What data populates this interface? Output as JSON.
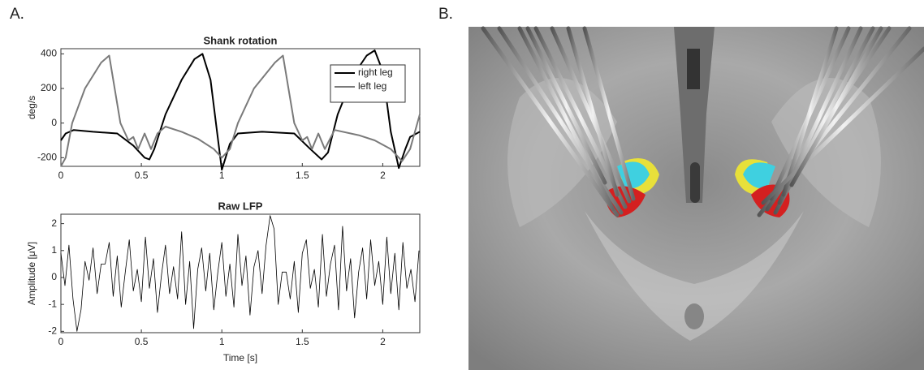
{
  "panel_labels": [
    "A.",
    "B."
  ],
  "chart_data": [
    {
      "type": "line",
      "title": "Shank rotation",
      "y_label": "deg/s",
      "xlim": [
        0,
        2.23
      ],
      "ylim": [
        -250,
        430
      ],
      "xticks": [
        0,
        0.5,
        1,
        1.5,
        2
      ],
      "yticks": [
        -200,
        0,
        200,
        400
      ],
      "legend": "upper right",
      "series": [
        {
          "name": "right leg",
          "color": "#000000",
          "x": [
            0,
            0.03,
            0.08,
            0.2,
            0.35,
            0.45,
            0.52,
            0.55,
            0.58,
            0.65,
            0.75,
            0.83,
            0.88,
            0.93,
            0.97,
            1.0,
            1.05,
            1.1,
            1.25,
            1.45,
            1.55,
            1.62,
            1.66,
            1.72,
            1.82,
            1.9,
            1.95,
            2.0,
            2.05,
            2.1,
            2.14,
            2.17,
            2.23
          ],
          "values": [
            -100,
            -60,
            -40,
            -50,
            -60,
            -130,
            -200,
            -210,
            -150,
            50,
            250,
            370,
            400,
            250,
            -50,
            -270,
            -120,
            -60,
            -50,
            -60,
            -150,
            -210,
            -170,
            50,
            280,
            390,
            420,
            300,
            -50,
            -260,
            -150,
            -80,
            -50
          ]
        },
        {
          "name": "left leg",
          "color": "#7a7a7a",
          "x": [
            0,
            0.03,
            0.07,
            0.15,
            0.25,
            0.3,
            0.37,
            0.42,
            0.45,
            0.48,
            0.52,
            0.56,
            0.6,
            0.65,
            0.75,
            0.85,
            0.95,
            1.0,
            1.05,
            1.1,
            1.2,
            1.33,
            1.38,
            1.45,
            1.5,
            1.53,
            1.56,
            1.6,
            1.64,
            1.7,
            1.85,
            1.95,
            2.05,
            2.12,
            2.17,
            2.23
          ],
          "values": [
            -250,
            -200,
            0,
            200,
            350,
            390,
            0,
            -100,
            -80,
            -150,
            -60,
            -150,
            -60,
            -20,
            -50,
            -90,
            -150,
            -200,
            -150,
            0,
            200,
            350,
            390,
            0,
            -100,
            -80,
            -150,
            -60,
            -150,
            -40,
            -70,
            -100,
            -150,
            -220,
            -150,
            50
          ]
        }
      ]
    },
    {
      "type": "line",
      "title": "Raw LFP",
      "x_label": "Time [s]",
      "y_label": "Amplitude [μV]",
      "color": "#000000",
      "xlim": [
        0,
        2.23
      ],
      "ylim": [
        -2.05,
        2.35
      ],
      "xticks": [
        0,
        0.5,
        1,
        1.5,
        2
      ],
      "yticks": [
        -2,
        -1,
        0,
        1,
        2
      ],
      "x": [
        0,
        0.025,
        0.05,
        0.075,
        0.1,
        0.125,
        0.15,
        0.175,
        0.2,
        0.225,
        0.25,
        0.275,
        0.3,
        0.325,
        0.35,
        0.375,
        0.4,
        0.425,
        0.45,
        0.475,
        0.5,
        0.525,
        0.55,
        0.575,
        0.6,
        0.625,
        0.65,
        0.675,
        0.7,
        0.725,
        0.75,
        0.775,
        0.8,
        0.825,
        0.85,
        0.875,
        0.9,
        0.925,
        0.95,
        0.975,
        1,
        1.025,
        1.05,
        1.075,
        1.1,
        1.125,
        1.15,
        1.175,
        1.2,
        1.225,
        1.25,
        1.275,
        1.3,
        1.325,
        1.35,
        1.375,
        1.4,
        1.425,
        1.45,
        1.475,
        1.5,
        1.525,
        1.55,
        1.575,
        1.6,
        1.625,
        1.65,
        1.675,
        1.7,
        1.725,
        1.75,
        1.775,
        1.8,
        1.825,
        1.85,
        1.875,
        1.9,
        1.925,
        1.95,
        1.975,
        2,
        2.025,
        2.05,
        2.075,
        2.1,
        2.125,
        2.15,
        2.175,
        2.2,
        2.225
      ],
      "values": [
        0.9,
        -0.3,
        1.2,
        -0.8,
        -2.0,
        -1.2,
        0.6,
        -0.1,
        1.1,
        -0.6,
        0.5,
        0.5,
        1.3,
        -0.7,
        0.8,
        -1.1,
        0.2,
        1.4,
        -0.5,
        0.3,
        -0.9,
        1.5,
        -0.4,
        0.7,
        -1.3,
        0.1,
        1.2,
        -0.6,
        0.4,
        -0.8,
        1.7,
        -1.0,
        0.6,
        -1.9,
        0.3,
        1.1,
        -0.5,
        0.9,
        -1.2,
        0.2,
        1.3,
        -0.7,
        0.5,
        -1.1,
        1.6,
        -0.3,
        0.8,
        -1.4,
        0.4,
        1.0,
        -0.6,
        1.2,
        2.3,
        1.8,
        -1.0,
        0.2,
        0.2,
        -0.8,
        0.6,
        -1.3,
        0.9,
        1.4,
        -0.4,
        0.3,
        -1.1,
        1.6,
        -0.7,
        0.5,
        1.2,
        -1.2,
        1.9,
        -0.5,
        0.7,
        -1.5,
        0.2,
        1.1,
        -0.8,
        1.4,
        -0.3,
        0.6,
        -1.0,
        1.5,
        -0.6,
        0.9,
        -1.2,
        1.3,
        -0.4,
        0.3,
        -0.9,
        1.0
      ]
    }
  ]
}
